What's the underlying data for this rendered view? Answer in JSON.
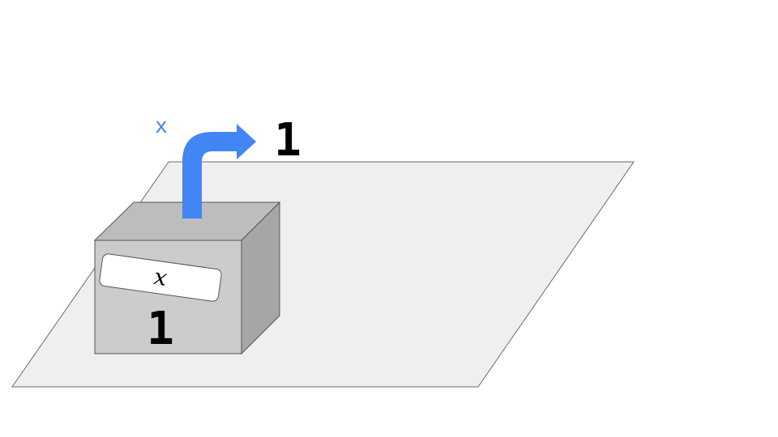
{
  "diagram": {
    "arrow_label": "x",
    "output_value": "1",
    "box_label": "x",
    "box_value": "1"
  },
  "colors": {
    "background": "#ffffff",
    "plane_fill": "#efefef",
    "plane_stroke": "#6b6b6b",
    "box_front": "#cccccc",
    "box_top": "#bdbdbd",
    "box_side": "#a6a6a6",
    "box_stroke": "#555555",
    "label_card": "#ffffff",
    "arrow": "#4285f4",
    "arrow_label": "#4a86d9",
    "text": "#000000"
  }
}
